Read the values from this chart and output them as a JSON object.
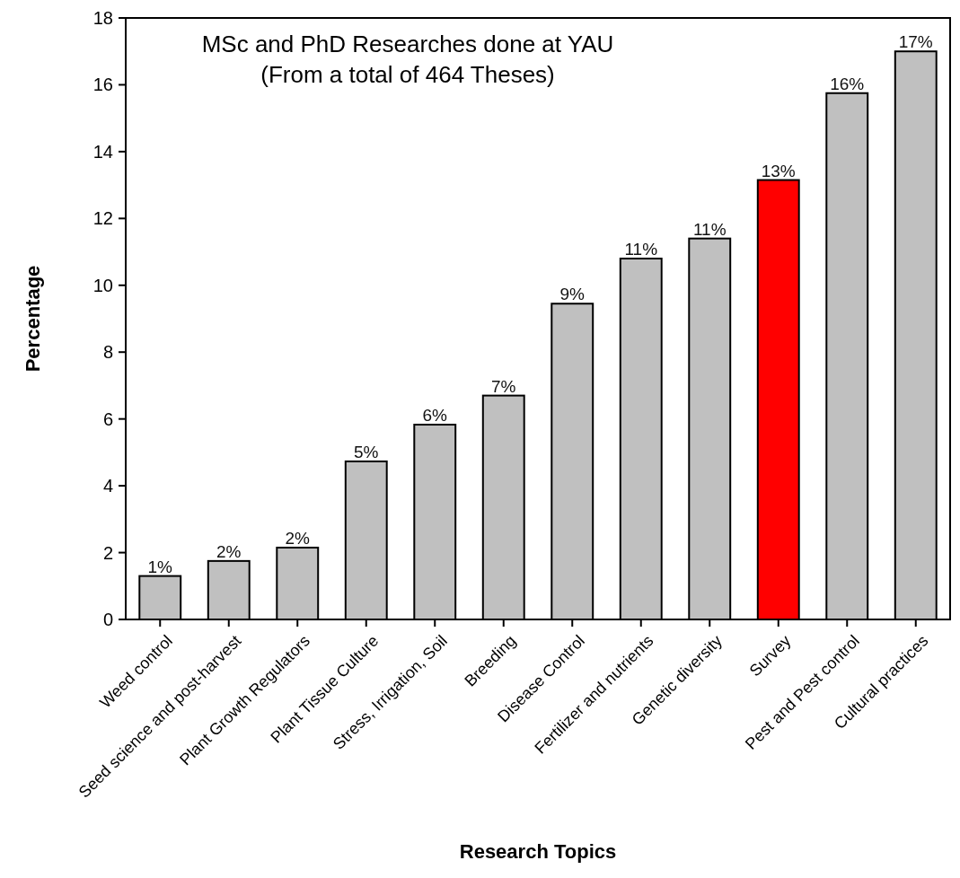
{
  "chart_data": {
    "type": "bar",
    "title": "MSc and PhD Researches done at YAU",
    "subtitle": "(From a total of 464 Theses)",
    "xlabel": "Research Topics",
    "ylabel": "Percentage",
    "categories": [
      "Weed control",
      "Seed science and post-harvest",
      "Plant Growth Regulators",
      "Plant Tissue Culture",
      "Stress, Irrigation, Soil",
      "Breeding",
      "Disease Control",
      "Fertilizer and nutrients",
      "Genetic diversity",
      "Survey",
      "Pest and Pest control",
      "Cultural practices"
    ],
    "values": [
      1.3,
      1.75,
      2.15,
      4.73,
      5.83,
      6.7,
      9.45,
      10.8,
      11.4,
      13.15,
      15.75,
      17.0
    ],
    "colors": [
      "#c0c0c0",
      "#c0c0c0",
      "#c0c0c0",
      "#c0c0c0",
      "#c0c0c0",
      "#c0c0c0",
      "#c0c0c0",
      "#c0c0c0",
      "#c0c0c0",
      "#ff0000",
      "#c0c0c0",
      "#c0c0c0"
    ],
    "value_labels": [
      "1%",
      "2%",
      "2%",
      "5%",
      "6%",
      "7%",
      "9%",
      "11%",
      "11%",
      "13%",
      "16%",
      "17%"
    ],
    "ylim": [
      0,
      18
    ],
    "yticks": [
      0,
      2,
      4,
      6,
      8,
      10,
      12,
      14,
      16,
      18
    ],
    "grid": false
  }
}
